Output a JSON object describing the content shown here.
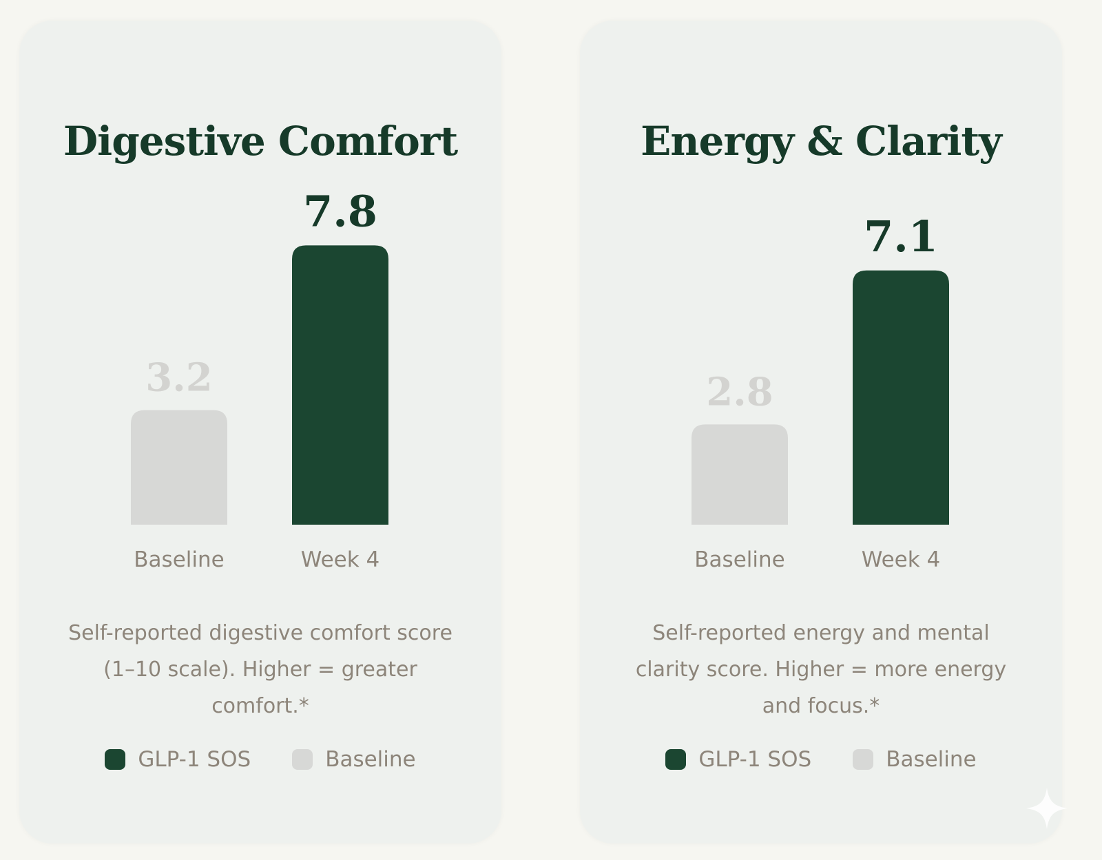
{
  "colors": {
    "primary": "#1b4631",
    "baseline": "#d7d8d6",
    "primary_label": "#163a29",
    "baseline_label": "#d3d3d0",
    "axis_label": "#8d857a"
  },
  "chart_data": [
    {
      "type": "bar",
      "title": "Digestive Comfort",
      "categories": [
        "Baseline",
        "Week 4"
      ],
      "values": [
        3.2,
        7.8
      ],
      "value_labels": [
        "3.2",
        "7.8"
      ],
      "series_for_category": [
        "Baseline",
        "GLP-1 SOS"
      ],
      "ylim": [
        0,
        10
      ],
      "xlabel": "",
      "ylabel": "",
      "caption": "Self-reported digestive comfort score (1–10 scale). Higher = greater comfort.*",
      "legend": [
        {
          "label": "GLP-1 SOS",
          "color": "#1b4631"
        },
        {
          "label": "Baseline",
          "color": "#d7d8d6"
        }
      ]
    },
    {
      "type": "bar",
      "title": "Energy & Clarity",
      "categories": [
        "Baseline",
        "Week 4"
      ],
      "values": [
        2.8,
        7.1
      ],
      "value_labels": [
        "2.8",
        "7.1"
      ],
      "series_for_category": [
        "Baseline",
        "GLP-1 SOS"
      ],
      "ylim": [
        0,
        10
      ],
      "xlabel": "",
      "ylabel": "",
      "caption": "Self-reported energy and mental clarity score. Higher = more energy and focus.*",
      "legend": [
        {
          "label": "GLP-1 SOS",
          "color": "#1b4631"
        },
        {
          "label": "Baseline",
          "color": "#d7d8d6"
        }
      ]
    }
  ],
  "icons": {
    "corner": "sparkle-icon"
  }
}
